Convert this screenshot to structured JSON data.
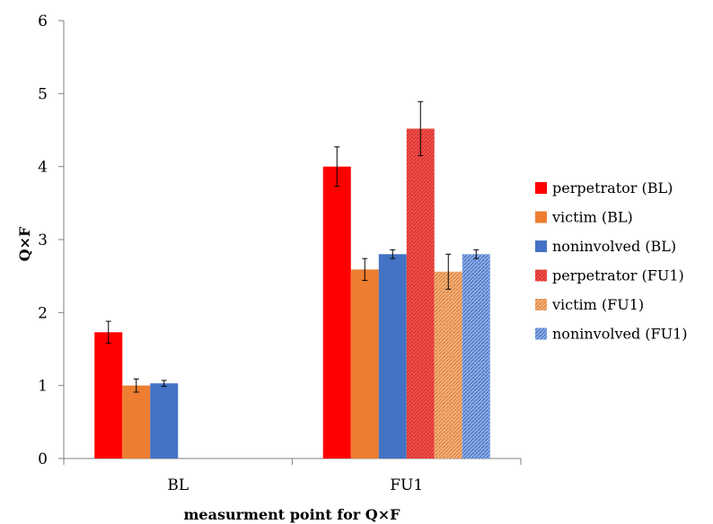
{
  "chart_data": {
    "type": "bar",
    "title": "",
    "xlabel": "measurment point for Q×F",
    "ylabel": "Q×F",
    "ylim": [
      0,
      6
    ],
    "yticks": [
      0,
      1,
      2,
      3,
      4,
      5,
      6
    ],
    "categories": [
      "BL",
      "FU1"
    ],
    "grid": false,
    "legend_position": "right",
    "series": [
      {
        "name": "perpetrator (BL)",
        "color": "#ff0000",
        "pattern": "solid",
        "values": [
          1.73,
          4.0
        ],
        "errors": [
          0.15,
          0.27
        ]
      },
      {
        "name": "victim (BL)",
        "color": "#ed7d31",
        "pattern": "solid",
        "values": [
          1.0,
          2.59
        ],
        "errors": [
          0.09,
          0.15
        ]
      },
      {
        "name": "noninvolved (BL)",
        "color": "#4472c4",
        "pattern": "solid",
        "values": [
          1.03,
          2.8
        ],
        "errors": [
          0.04,
          0.06
        ]
      },
      {
        "name": "perpetrator (FU1)",
        "color": "#e53935",
        "pattern": "hatched",
        "values": [
          null,
          4.52
        ],
        "errors": [
          null,
          0.37
        ]
      },
      {
        "name": "victim (FU1)",
        "color": "#f0a060",
        "pattern": "hatched",
        "values": [
          null,
          2.56
        ],
        "errors": [
          null,
          0.24
        ]
      },
      {
        "name": "noninvolved (FU1)",
        "color": "#6f95d4",
        "pattern": "hatched",
        "values": [
          null,
          2.8
        ],
        "errors": [
          null,
          0.06
        ]
      }
    ]
  }
}
